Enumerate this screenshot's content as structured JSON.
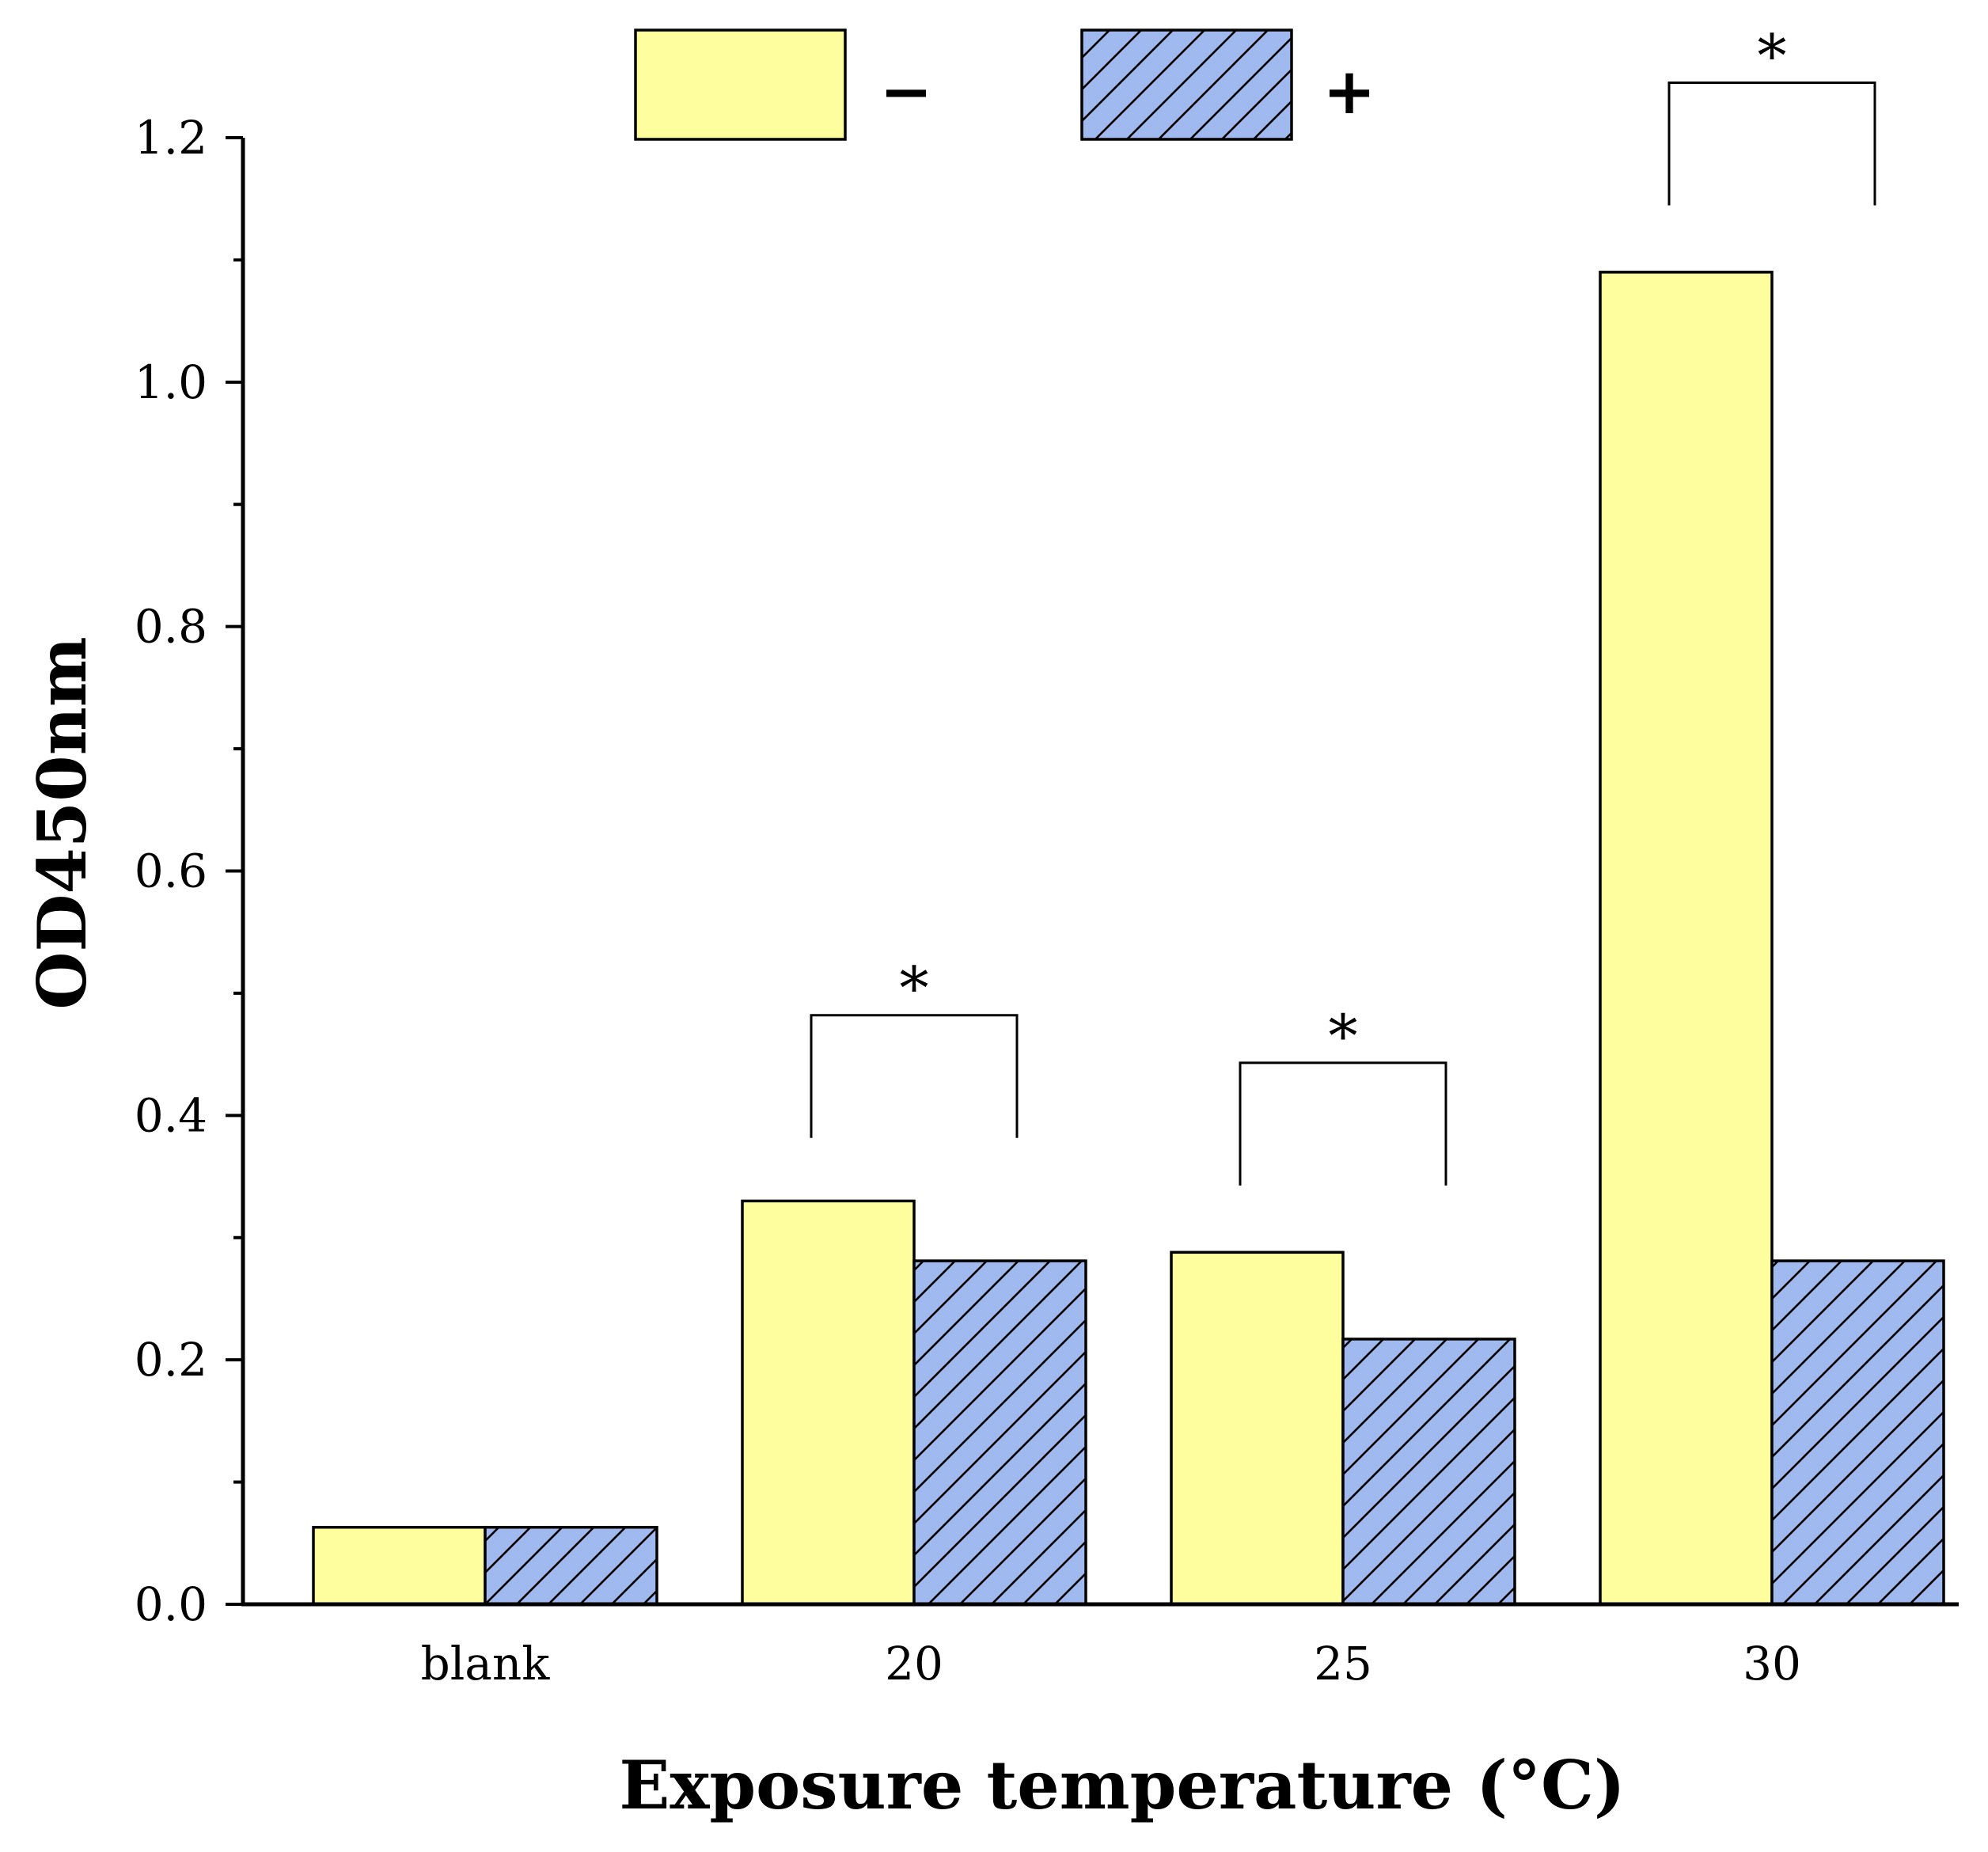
{
  "chart_data": {
    "type": "bar",
    "title": "",
    "xlabel": "Exposure temperature (°C)",
    "ylabel": "OD450nm",
    "ylim": [
      0,
      1.2
    ],
    "yticks": [
      "0.0",
      "0.2",
      "0.4",
      "0.6",
      "0.8",
      "1.0",
      "1.2"
    ],
    "categories": [
      "blank",
      "20",
      "25",
      "30"
    ],
    "series": [
      {
        "name": "−",
        "values": [
          0.063,
          0.33,
          0.288,
          1.09
        ],
        "color": "#fffe9e",
        "pattern": "none"
      },
      {
        "name": "+",
        "values": [
          0.063,
          0.281,
          0.217,
          0.281
        ],
        "color": "#a0baef",
        "pattern": "hatch"
      }
    ],
    "legend_position": "top-center",
    "significance": [
      {
        "category": "20",
        "label": "*",
        "level": 0.482
      },
      {
        "category": "25",
        "label": "*",
        "level": 0.443
      },
      {
        "category": "30",
        "label": "*",
        "level": 1.245
      }
    ]
  }
}
